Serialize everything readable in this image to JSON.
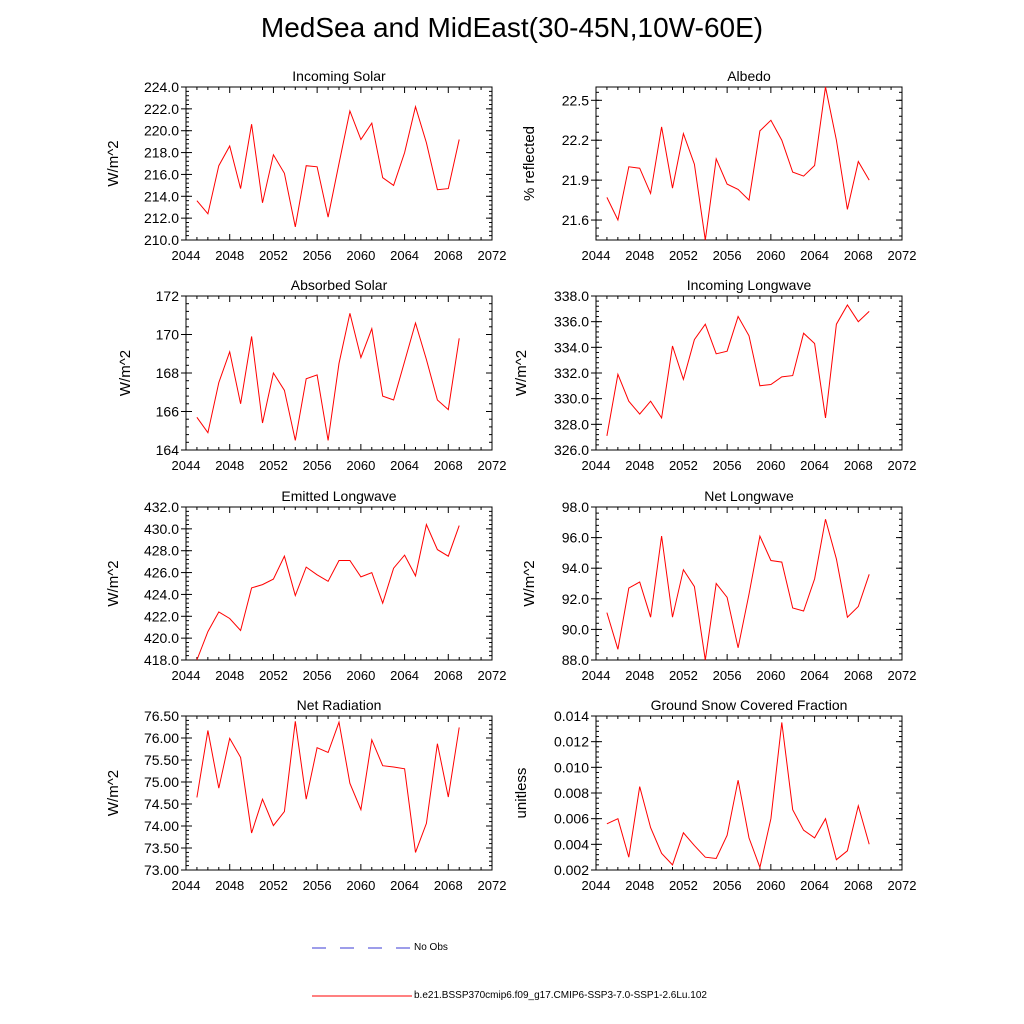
{
  "title": "MedSea and MidEast(30-45N,10W-60E)",
  "colors": {
    "model": "#ff0000",
    "obs": "#3b3bd6",
    "axis": "#000000"
  },
  "legend": {
    "obs_label": "No Obs",
    "model_label": "b.e21.BSSP370cmip6.f09_g17.CMIP6-SSP3-7.0-SSP1-2.6Lu.102"
  },
  "chart_data": [
    {
      "type": "line",
      "title": "Incoming Solar",
      "ylabel": "W/m^2",
      "xlim": [
        2044,
        2072
      ],
      "ylim": [
        210,
        224
      ],
      "xticks": [
        2044,
        2048,
        2052,
        2056,
        2060,
        2064,
        2068,
        2072
      ],
      "xtick_labels": [
        "2044",
        "2048",
        "2052",
        "2056",
        "2060",
        "2064",
        "2068",
        "2072"
      ],
      "yticks": [
        210,
        212,
        214,
        216,
        218,
        220,
        222,
        224
      ],
      "ytick_labels": [
        "210.0",
        "212.0",
        "214.0",
        "216.0",
        "218.0",
        "220.0",
        "222.0",
        "224.0"
      ],
      "x": [
        2045,
        2046,
        2047,
        2048,
        2049,
        2050,
        2051,
        2052,
        2053,
        2054,
        2055,
        2056,
        2057,
        2058,
        2059,
        2060,
        2061,
        2062,
        2063,
        2064,
        2065,
        2066,
        2067,
        2068,
        2069
      ],
      "series": [
        {
          "values": [
            213.6,
            212.4,
            216.8,
            218.6,
            214.7,
            220.6,
            213.4,
            217.8,
            216.1,
            211.2,
            216.8,
            216.7,
            212.1,
            217.0,
            221.8,
            219.2,
            220.7,
            215.7,
            215.0,
            218.0,
            222.2,
            218.9,
            214.6,
            214.7,
            219.2
          ]
        }
      ]
    },
    {
      "type": "line",
      "title": "Albedo",
      "ylabel": "% reflected",
      "xlim": [
        2044,
        2072
      ],
      "ylim": [
        21.45,
        22.6
      ],
      "xticks": [
        2044,
        2048,
        2052,
        2056,
        2060,
        2064,
        2068,
        2072
      ],
      "xtick_labels": [
        "2044",
        "2048",
        "2052",
        "2056",
        "2060",
        "2064",
        "2068",
        "2072"
      ],
      "yticks": [
        21.6,
        21.9,
        22.2,
        22.5
      ],
      "ytick_labels": [
        "21.6",
        "21.9",
        "22.2",
        "22.5"
      ],
      "x": [
        2045,
        2046,
        2047,
        2048,
        2049,
        2050,
        2051,
        2052,
        2053,
        2054,
        2055,
        2056,
        2057,
        2058,
        2059,
        2060,
        2061,
        2062,
        2063,
        2064,
        2065,
        2066,
        2067,
        2068,
        2069
      ],
      "series": [
        {
          "values": [
            21.77,
            21.6,
            22.0,
            21.99,
            21.8,
            22.3,
            21.84,
            22.25,
            22.02,
            21.45,
            22.06,
            21.87,
            21.83,
            21.75,
            22.27,
            22.35,
            22.2,
            21.96,
            21.93,
            22.01,
            22.6,
            22.2,
            21.68,
            22.04,
            21.9
          ]
        }
      ]
    },
    {
      "type": "line",
      "title": "Absorbed Solar",
      "ylabel": "W/m^2",
      "xlim": [
        2044,
        2072
      ],
      "ylim": [
        164,
        172
      ],
      "xticks": [
        2044,
        2048,
        2052,
        2056,
        2060,
        2064,
        2068,
        2072
      ],
      "xtick_labels": [
        "2044",
        "2048",
        "2052",
        "2056",
        "2060",
        "2064",
        "2068",
        "2072"
      ],
      "yticks": [
        164,
        166,
        168,
        170,
        172
      ],
      "ytick_labels": [
        "164",
        "166",
        "168",
        "170",
        "172"
      ],
      "x": [
        2045,
        2046,
        2047,
        2048,
        2049,
        2050,
        2051,
        2052,
        2053,
        2054,
        2055,
        2056,
        2057,
        2058,
        2059,
        2060,
        2061,
        2062,
        2063,
        2064,
        2065,
        2066,
        2067,
        2068,
        2069
      ],
      "series": [
        {
          "values": [
            165.7,
            164.9,
            167.5,
            169.1,
            166.4,
            169.9,
            165.4,
            168.0,
            167.1,
            164.5,
            167.7,
            167.9,
            164.5,
            168.5,
            171.1,
            168.8,
            170.3,
            166.8,
            166.6,
            168.6,
            170.6,
            168.7,
            166.6,
            166.1,
            169.8
          ]
        }
      ]
    },
    {
      "type": "line",
      "title": "Incoming Longwave",
      "ylabel": "W/m^2",
      "xlim": [
        2044,
        2072
      ],
      "ylim": [
        326,
        338
      ],
      "xticks": [
        2044,
        2048,
        2052,
        2056,
        2060,
        2064,
        2068,
        2072
      ],
      "xtick_labels": [
        "2044",
        "2048",
        "2052",
        "2056",
        "2060",
        "2064",
        "2068",
        "2072"
      ],
      "yticks": [
        326,
        328,
        330,
        332,
        334,
        336,
        338
      ],
      "ytick_labels": [
        "326.0",
        "328.0",
        "330.0",
        "332.0",
        "334.0",
        "336.0",
        "338.0"
      ],
      "x": [
        2045,
        2046,
        2047,
        2048,
        2049,
        2050,
        2051,
        2052,
        2053,
        2054,
        2055,
        2056,
        2057,
        2058,
        2059,
        2060,
        2061,
        2062,
        2063,
        2064,
        2065,
        2066,
        2067,
        2068,
        2069
      ],
      "series": [
        {
          "values": [
            327.1,
            331.9,
            329.8,
            328.8,
            329.8,
            328.5,
            334.1,
            331.5,
            334.6,
            335.8,
            333.5,
            333.7,
            336.4,
            334.9,
            331.0,
            331.1,
            331.7,
            331.8,
            335.1,
            334.3,
            328.5,
            335.8,
            337.3,
            336.0,
            336.8
          ]
        }
      ]
    },
    {
      "type": "line",
      "title": "Emitted Longwave",
      "ylabel": "W/m^2",
      "xlim": [
        2044,
        2072
      ],
      "ylim": [
        418,
        432
      ],
      "xticks": [
        2044,
        2048,
        2052,
        2056,
        2060,
        2064,
        2068,
        2072
      ],
      "xtick_labels": [
        "2044",
        "2048",
        "2052",
        "2056",
        "2060",
        "2064",
        "2068",
        "2072"
      ],
      "yticks": [
        418,
        420,
        422,
        424,
        426,
        428,
        430,
        432
      ],
      "ytick_labels": [
        "418.0",
        "420.0",
        "422.0",
        "424.0",
        "426.0",
        "428.0",
        "430.0",
        "432.0"
      ],
      "x": [
        2045,
        2046,
        2047,
        2048,
        2049,
        2050,
        2051,
        2052,
        2053,
        2054,
        2055,
        2056,
        2057,
        2058,
        2059,
        2060,
        2061,
        2062,
        2063,
        2064,
        2065,
        2066,
        2067,
        2068,
        2069
      ],
      "series": [
        {
          "values": [
            418.0,
            420.6,
            422.4,
            421.8,
            420.7,
            424.6,
            424.9,
            425.4,
            427.5,
            423.9,
            426.5,
            425.8,
            425.2,
            427.1,
            427.1,
            425.6,
            426.0,
            423.2,
            426.4,
            427.6,
            425.7,
            430.4,
            428.1,
            427.5,
            430.3
          ]
        }
      ]
    },
    {
      "type": "line",
      "title": "Net Longwave",
      "ylabel": "W/m^2",
      "xlim": [
        2044,
        2072
      ],
      "ylim": [
        88,
        98
      ],
      "xticks": [
        2044,
        2048,
        2052,
        2056,
        2060,
        2064,
        2068,
        2072
      ],
      "xtick_labels": [
        "2044",
        "2048",
        "2052",
        "2056",
        "2060",
        "2064",
        "2068",
        "2072"
      ],
      "yticks": [
        88,
        90,
        92,
        94,
        96,
        98
      ],
      "ytick_labels": [
        "88.0",
        "90.0",
        "92.0",
        "94.0",
        "96.0",
        "98.0"
      ],
      "x": [
        2045,
        2046,
        2047,
        2048,
        2049,
        2050,
        2051,
        2052,
        2053,
        2054,
        2055,
        2056,
        2057,
        2058,
        2059,
        2060,
        2061,
        2062,
        2063,
        2064,
        2065,
        2066,
        2067,
        2068,
        2069
      ],
      "series": [
        {
          "values": [
            91.1,
            88.7,
            92.7,
            93.1,
            90.8,
            96.1,
            90.8,
            93.9,
            92.8,
            88.0,
            93.0,
            92.1,
            88.8,
            92.3,
            96.1,
            94.5,
            94.4,
            91.4,
            91.2,
            93.3,
            97.2,
            94.6,
            90.8,
            91.5,
            93.6
          ]
        }
      ]
    },
    {
      "type": "line",
      "title": "Net Radiation",
      "ylabel": "W/m^2",
      "xlim": [
        2044,
        2072
      ],
      "ylim": [
        73,
        76.5
      ],
      "xticks": [
        2044,
        2048,
        2052,
        2056,
        2060,
        2064,
        2068,
        2072
      ],
      "xtick_labels": [
        "2044",
        "2048",
        "2052",
        "2056",
        "2060",
        "2064",
        "2068",
        "2072"
      ],
      "yticks": [
        73,
        73.5,
        74,
        74.5,
        75,
        75.5,
        76,
        76.5
      ],
      "ytick_labels": [
        "73.00",
        "73.50",
        "74.00",
        "74.50",
        "75.00",
        "75.50",
        "76.00",
        "76.50"
      ],
      "x": [
        2045,
        2046,
        2047,
        2048,
        2049,
        2050,
        2051,
        2052,
        2053,
        2054,
        2055,
        2056,
        2057,
        2058,
        2059,
        2060,
        2061,
        2062,
        2063,
        2064,
        2065,
        2066,
        2067,
        2068,
        2069
      ],
      "series": [
        {
          "values": [
            74.65,
            76.17,
            74.86,
            75.99,
            75.56,
            73.84,
            74.61,
            74.01,
            74.33,
            76.38,
            74.61,
            75.78,
            75.67,
            76.36,
            74.97,
            74.37,
            75.96,
            75.37,
            75.34,
            75.3,
            73.4,
            74.06,
            75.87,
            74.66,
            76.24
          ]
        }
      ]
    },
    {
      "type": "line",
      "title": "Ground Snow Covered Fraction",
      "ylabel": "unitless",
      "xlim": [
        2044,
        2072
      ],
      "ylim": [
        0.002,
        0.014
      ],
      "xticks": [
        2044,
        2048,
        2052,
        2056,
        2060,
        2064,
        2068,
        2072
      ],
      "xtick_labels": [
        "2044",
        "2048",
        "2052",
        "2056",
        "2060",
        "2064",
        "2068",
        "2072"
      ],
      "yticks": [
        0.002,
        0.004,
        0.006,
        0.008,
        0.01,
        0.012,
        0.014
      ],
      "ytick_labels": [
        "0.002",
        "0.004",
        "0.006",
        "0.008",
        "0.010",
        "0.012",
        "0.014"
      ],
      "x": [
        2045,
        2046,
        2047,
        2048,
        2049,
        2050,
        2051,
        2052,
        2053,
        2054,
        2055,
        2056,
        2057,
        2058,
        2059,
        2060,
        2061,
        2062,
        2063,
        2064,
        2065,
        2066,
        2067,
        2068,
        2069
      ],
      "series": [
        {
          "values": [
            0.0056,
            0.006,
            0.003,
            0.0085,
            0.0053,
            0.0033,
            0.0024,
            0.0049,
            0.0039,
            0.003,
            0.0029,
            0.0047,
            0.009,
            0.0045,
            0.0022,
            0.006,
            0.0135,
            0.0067,
            0.0051,
            0.0045,
            0.006,
            0.0028,
            0.0035,
            0.007,
            0.004
          ]
        }
      ]
    }
  ]
}
